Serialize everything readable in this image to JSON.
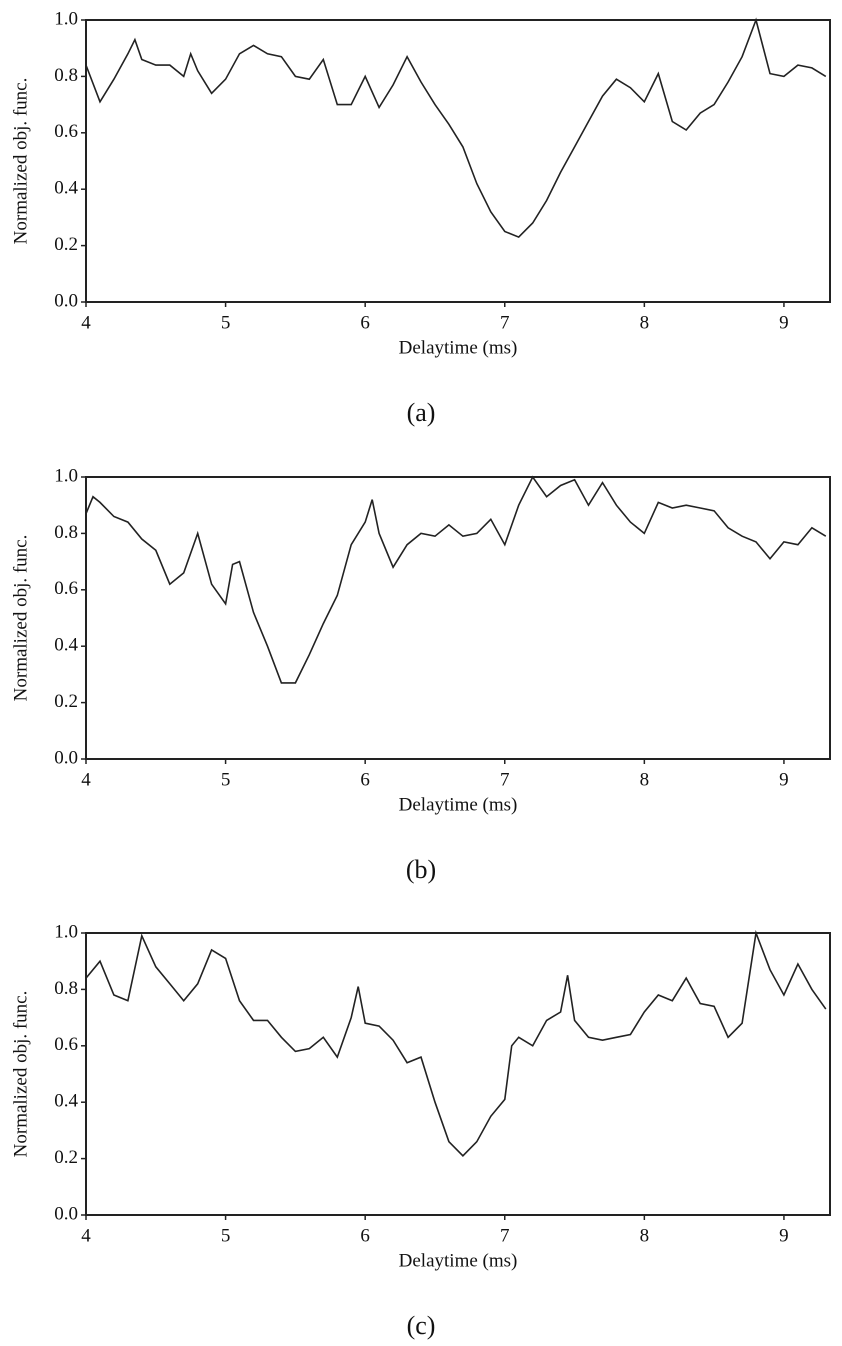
{
  "chart_data": [
    {
      "type": "line",
      "caption": "(a)",
      "xlabel": "Delaytime (ms)",
      "ylabel": "Normalized obj. func.",
      "xlim": [
        4,
        9.33
      ],
      "ylim": [
        0,
        1
      ],
      "xticks": [
        4,
        5,
        6,
        7,
        8,
        9
      ],
      "yticks": [
        {
          "value": 0,
          "label": "0.0"
        },
        0.2,
        0.4,
        0.6,
        0.8,
        {
          "value": 1,
          "label": "1.0"
        }
      ],
      "color": "#222",
      "grid": false,
      "x": [
        4.0,
        4.1,
        4.2,
        4.3,
        4.35,
        4.4,
        4.5,
        4.6,
        4.7,
        4.75,
        4.8,
        4.9,
        5.0,
        5.1,
        5.2,
        5.3,
        5.4,
        5.5,
        5.6,
        5.7,
        5.8,
        5.9,
        6.0,
        6.1,
        6.2,
        6.3,
        6.4,
        6.5,
        6.6,
        6.7,
        6.8,
        6.9,
        7.0,
        7.1,
        7.2,
        7.3,
        7.4,
        7.5,
        7.6,
        7.7,
        7.8,
        7.9,
        8.0,
        8.1,
        8.2,
        8.3,
        8.4,
        8.5,
        8.6,
        8.7,
        8.8,
        8.9,
        9.0,
        9.1,
        9.2,
        9.3
      ],
      "values": [
        0.84,
        0.71,
        0.79,
        0.88,
        0.93,
        0.86,
        0.84,
        0.84,
        0.8,
        0.88,
        0.82,
        0.74,
        0.79,
        0.88,
        0.91,
        0.88,
        0.87,
        0.8,
        0.79,
        0.86,
        0.7,
        0.7,
        0.8,
        0.69,
        0.77,
        0.87,
        0.78,
        0.7,
        0.63,
        0.55,
        0.42,
        0.32,
        0.25,
        0.23,
        0.28,
        0.36,
        0.46,
        0.55,
        0.64,
        0.73,
        0.79,
        0.76,
        0.71,
        0.81,
        0.64,
        0.61,
        0.67,
        0.7,
        0.78,
        0.87,
        1.0,
        0.81,
        0.8,
        0.84,
        0.83,
        0.8
      ]
    },
    {
      "type": "line",
      "caption": "(b)",
      "xlabel": "Delaytime (ms)",
      "ylabel": "Normalized obj. func.",
      "xlim": [
        4,
        9.33
      ],
      "ylim": [
        0,
        1
      ],
      "xticks": [
        4,
        5,
        6,
        7,
        8,
        9
      ],
      "yticks": [
        {
          "value": 0,
          "label": "0.0"
        },
        0.2,
        0.4,
        0.6,
        0.8,
        {
          "value": 1,
          "label": "1.0"
        }
      ],
      "color": "#222",
      "grid": false,
      "x": [
        4.0,
        4.05,
        4.1,
        4.2,
        4.3,
        4.4,
        4.5,
        4.6,
        4.7,
        4.8,
        4.9,
        5.0,
        5.05,
        5.1,
        5.2,
        5.3,
        5.4,
        5.5,
        5.6,
        5.7,
        5.8,
        5.9,
        6.0,
        6.05,
        6.1,
        6.2,
        6.3,
        6.4,
        6.5,
        6.6,
        6.7,
        6.8,
        6.9,
        7.0,
        7.1,
        7.2,
        7.3,
        7.4,
        7.5,
        7.6,
        7.7,
        7.8,
        7.9,
        8.0,
        8.1,
        8.2,
        8.3,
        8.4,
        8.5,
        8.6,
        8.7,
        8.8,
        8.9,
        9.0,
        9.1,
        9.2,
        9.3
      ],
      "values": [
        0.87,
        0.93,
        0.91,
        0.86,
        0.84,
        0.78,
        0.74,
        0.62,
        0.66,
        0.8,
        0.62,
        0.55,
        0.69,
        0.7,
        0.52,
        0.4,
        0.27,
        0.27,
        0.37,
        0.48,
        0.58,
        0.76,
        0.84,
        0.92,
        0.8,
        0.68,
        0.76,
        0.8,
        0.79,
        0.83,
        0.79,
        0.8,
        0.85,
        0.76,
        0.9,
        1.0,
        0.93,
        0.97,
        0.99,
        0.9,
        0.98,
        0.9,
        0.84,
        0.8,
        0.91,
        0.89,
        0.9,
        0.89,
        0.88,
        0.82,
        0.79,
        0.77,
        0.71,
        0.77,
        0.76,
        0.82,
        0.79
      ]
    },
    {
      "type": "line",
      "caption": "(c)",
      "xlabel": "Delaytime (ms)",
      "ylabel": "Normalized obj. func.",
      "xlim": [
        4,
        9.33
      ],
      "ylim": [
        0,
        1
      ],
      "xticks": [
        4,
        5,
        6,
        7,
        8,
        9
      ],
      "yticks": [
        {
          "value": 0,
          "label": "0.0"
        },
        0.2,
        0.4,
        0.6,
        0.8,
        {
          "value": 1,
          "label": "1.0"
        }
      ],
      "color": "#222",
      "grid": false,
      "x": [
        4.0,
        4.1,
        4.2,
        4.3,
        4.4,
        4.5,
        4.6,
        4.7,
        4.8,
        4.9,
        5.0,
        5.1,
        5.2,
        5.3,
        5.4,
        5.5,
        5.6,
        5.7,
        5.8,
        5.9,
        5.95,
        6.0,
        6.1,
        6.2,
        6.3,
        6.4,
        6.5,
        6.6,
        6.7,
        6.8,
        6.9,
        7.0,
        7.05,
        7.1,
        7.2,
        7.3,
        7.4,
        7.45,
        7.5,
        7.6,
        7.7,
        7.8,
        7.9,
        8.0,
        8.1,
        8.2,
        8.3,
        8.4,
        8.5,
        8.6,
        8.7,
        8.8,
        8.9,
        9.0,
        9.1,
        9.2,
        9.3
      ],
      "values": [
        0.84,
        0.9,
        0.78,
        0.76,
        0.99,
        0.88,
        0.82,
        0.76,
        0.82,
        0.94,
        0.91,
        0.76,
        0.69,
        0.69,
        0.63,
        0.58,
        0.59,
        0.63,
        0.56,
        0.7,
        0.81,
        0.68,
        0.67,
        0.62,
        0.54,
        0.56,
        0.4,
        0.26,
        0.21,
        0.26,
        0.35,
        0.41,
        0.6,
        0.63,
        0.6,
        0.69,
        0.72,
        0.85,
        0.69,
        0.63,
        0.62,
        0.63,
        0.64,
        0.72,
        0.78,
        0.76,
        0.84,
        0.75,
        0.74,
        0.63,
        0.68,
        1.0,
        0.87,
        0.78,
        0.89,
        0.8,
        0.73
      ]
    }
  ]
}
